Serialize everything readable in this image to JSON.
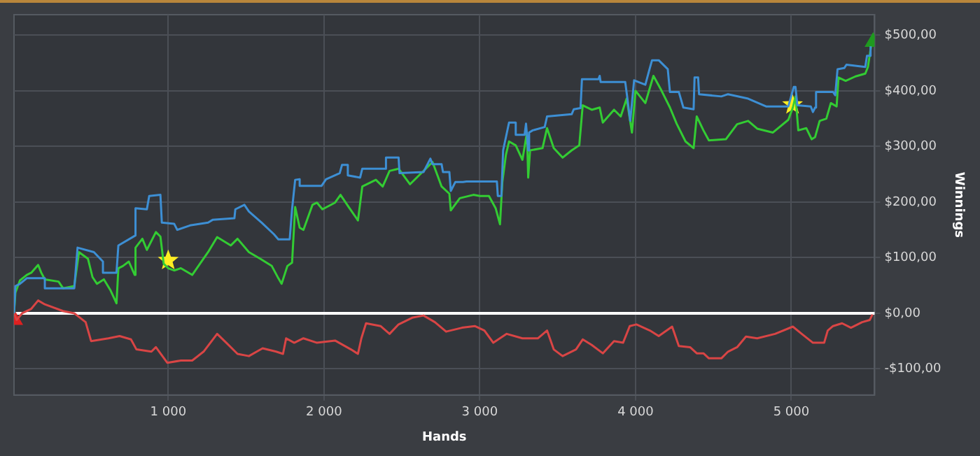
{
  "chart_data": {
    "type": "line",
    "xlabel": "Hands",
    "ylabel": "Winnings",
    "xlim": [
      10,
      5535
    ],
    "ylim": [
      -147,
      537
    ],
    "xticks": [
      {
        "value": 1000,
        "label": "1 000"
      },
      {
        "value": 2000,
        "label": "2 000"
      },
      {
        "value": 3000,
        "label": "3 000"
      },
      {
        "value": 4000,
        "label": "4 000"
      },
      {
        "value": 5000,
        "label": "5 000"
      }
    ],
    "yticks": [
      {
        "value": -100,
        "label": "-$100,00"
      },
      {
        "value": 0,
        "label": "$0,00"
      },
      {
        "value": 100,
        "label": "$100,00"
      },
      {
        "value": 200,
        "label": "$200,00"
      },
      {
        "value": 300,
        "label": "$300,00"
      },
      {
        "value": 400,
        "label": "$400,00"
      },
      {
        "value": 500,
        "label": "$500,00"
      }
    ],
    "grid": true,
    "legend": false,
    "marker": "none",
    "line_style": "solid",
    "ref_lines": [
      {
        "axis": "y",
        "value": 0,
        "color": "#ffffff"
      }
    ],
    "series": [
      {
        "color": "#3d8fd4",
        "x": [
          10,
          19,
          48,
          92,
          208,
          208,
          397,
          418,
          523,
          581,
          581,
          668,
          680,
          790,
          790,
          863,
          878,
          950,
          959,
          1038,
          1058,
          1140,
          1256,
          1285,
          1425,
          1431,
          1489,
          1518,
          1600,
          1679,
          1707,
          1780,
          1795,
          1815,
          1844,
          1844,
          1984,
          2013,
          2101,
          2116,
          2153,
          2153,
          2232,
          2246,
          2392,
          2398,
          2479,
          2485,
          2639,
          2683,
          2697,
          2755,
          2764,
          2805,
          2814,
          2843,
          2892,
          2915,
          3001,
          3110,
          3116,
          3139,
          3150,
          3188,
          3231,
          3231,
          3288,
          3297,
          3311,
          3317,
          3340,
          3417,
          3432,
          3590,
          3604,
          3647,
          3656,
          3762,
          3770,
          3776,
          3934,
          3948,
          3966,
          3991,
          4063,
          4086,
          4106,
          4149,
          4207,
          4221,
          4278,
          4307,
          4373,
          4379,
          4402,
          4408,
          4551,
          4594,
          4723,
          4838,
          4981,
          5016,
          5027,
          5039,
          5125,
          5139,
          5153,
          5159,
          5268,
          5282,
          5297,
          5340,
          5354,
          5475,
          5486,
          5503,
          5509
        ],
        "values": [
          0,
          49,
          53,
          63,
          63,
          45,
          45,
          118,
          110,
          93,
          73,
          73,
          122,
          140,
          189,
          187,
          211,
          213,
          163,
          161,
          150,
          158,
          163,
          168,
          171,
          187,
          195,
          183,
          163,
          142,
          133,
          133,
          187,
          240,
          241,
          229,
          229,
          241,
          252,
          267,
          267,
          248,
          244,
          260,
          260,
          280,
          280,
          252,
          254,
          278,
          268,
          268,
          254,
          254,
          220,
          236,
          236,
          237,
          237,
          237,
          211,
          211,
          293,
          343,
          343,
          321,
          321,
          341,
          293,
          325,
          329,
          335,
          354,
          358,
          367,
          369,
          421,
          421,
          427,
          416,
          416,
          386,
          346,
          419,
          411,
          435,
          455,
          455,
          439,
          398,
          398,
          370,
          367,
          424,
          424,
          394,
          390,
          394,
          386,
          372,
          372,
          407,
          407,
          374,
          372,
          362,
          370,
          398,
          398,
          392,
          439,
          441,
          447,
          443,
          463,
          463,
          480
        ]
      },
      {
        "color": "#33cc33",
        "x": [
          10,
          19,
          48,
          92,
          121,
          165,
          185,
          208,
          296,
          325,
          397,
          427,
          485,
          514,
          543,
          587,
          630,
          668,
          680,
          709,
          747,
          785,
          790,
          834,
          863,
          921,
          950,
          971,
          1000,
          1038,
          1081,
          1154,
          1256,
          1314,
          1402,
          1445,
          1518,
          1591,
          1665,
          1707,
          1728,
          1765,
          1795,
          1815,
          1844,
          1868,
          1926,
          1955,
          1990,
          2071,
          2106,
          2159,
          2218,
          2246,
          2333,
          2377,
          2421,
          2479,
          2552,
          2610,
          2697,
          2755,
          2805,
          2814,
          2872,
          2959,
          3001,
          3059,
          3102,
          3130,
          3145,
          3168,
          3188,
          3231,
          3274,
          3303,
          3311,
          3323,
          3403,
          3432,
          3475,
          3532,
          3590,
          3639,
          3661,
          3719,
          3770,
          3790,
          3862,
          3905,
          3943,
          3977,
          4000,
          4063,
          4115,
          4164,
          4221,
          4264,
          4321,
          4373,
          4393,
          4436,
          4471,
          4580,
          4652,
          4723,
          4781,
          4881,
          4981,
          5010,
          5027,
          5045,
          5096,
          5131,
          5153,
          5182,
          5225,
          5254,
          5291,
          5303,
          5349,
          5412,
          5475,
          5492,
          5512
        ],
        "values": [
          0,
          37,
          59,
          69,
          73,
          87,
          73,
          61,
          57,
          45,
          49,
          110,
          98,
          65,
          53,
          61,
          41,
          18,
          81,
          85,
          93,
          69,
          118,
          134,
          114,
          146,
          138,
          89,
          81,
          77,
          81,
          69,
          110,
          137,
          122,
          134,
          110,
          98,
          85,
          63,
          53,
          85,
          91,
          191,
          154,
          150,
          195,
          199,
          187,
          199,
          213,
          191,
          167,
          228,
          240,
          228,
          256,
          260,
          232,
          248,
          272,
          228,
          215,
          185,
          207,
          213,
          211,
          211,
          189,
          160,
          236,
          285,
          309,
          302,
          276,
          325,
          244,
          293,
          297,
          333,
          297,
          280,
          293,
          302,
          374,
          366,
          370,
          343,
          366,
          354,
          386,
          325,
          400,
          378,
          427,
          402,
          370,
          341,
          309,
          297,
          354,
          329,
          311,
          313,
          340,
          346,
          332,
          325,
          348,
          370,
          390,
          329,
          333,
          313,
          317,
          346,
          350,
          378,
          372,
          424,
          418,
          426,
          431,
          443,
          480
        ]
      },
      {
        "color": "#d94545",
        "x": [
          10,
          27,
          62,
          121,
          165,
          208,
          325,
          397,
          470,
          505,
          616,
          688,
          761,
          796,
          892,
          921,
          994,
          1081,
          1154,
          1227,
          1314,
          1373,
          1445,
          1518,
          1606,
          1693,
          1737,
          1757,
          1809,
          1868,
          1955,
          2071,
          2173,
          2218,
          2240,
          2270,
          2363,
          2421,
          2479,
          2566,
          2639,
          2712,
          2784,
          2886,
          2968,
          3030,
          3087,
          3173,
          3274,
          3374,
          3432,
          3475,
          3532,
          3618,
          3661,
          3719,
          3790,
          3862,
          3920,
          3963,
          4006,
          4092,
          4149,
          4235,
          4278,
          4350,
          4393,
          4436,
          4471,
          4551,
          4594,
          4652,
          4709,
          4781,
          4896,
          5010,
          5067,
          5139,
          5211,
          5234,
          5268,
          5326,
          5383,
          5455,
          5504,
          5521
        ],
        "values": [
          0,
          -12,
          0,
          8,
          23,
          16,
          4,
          0,
          -16,
          -50,
          -45,
          -41,
          -47,
          -65,
          -69,
          -61,
          -89,
          -85,
          -85,
          -69,
          -37,
          -53,
          -73,
          -77,
          -63,
          -69,
          -73,
          -45,
          -53,
          -45,
          -53,
          -49,
          -65,
          -73,
          -45,
          -18,
          -23,
          -37,
          -20,
          -8,
          -4,
          -16,
          -33,
          -26,
          -23,
          -31,
          -53,
          -37,
          -45,
          -45,
          -31,
          -65,
          -77,
          -65,
          -47,
          -57,
          -72,
          -50,
          -53,
          -23,
          -20,
          -31,
          -41,
          -24,
          -59,
          -61,
          -72,
          -72,
          -81,
          -81,
          -69,
          -61,
          -42,
          -45,
          -37,
          -24,
          -37,
          -53,
          -53,
          -31,
          -23,
          -18,
          -26,
          -16,
          -12,
          -2
        ]
      },
      {
        "type": "scatter",
        "marker": "star",
        "color": "#ffee22",
        "x": [
          1000,
          5008
        ],
        "values": [
          95,
          375
        ]
      },
      {
        "type": "scatter",
        "marker": "triangle",
        "color": "#e02020",
        "x": [
          14
        ],
        "values": [
          -12
        ]
      },
      {
        "type": "scatter",
        "marker": "triangle",
        "color": "#1f9a1f",
        "x": [
          5525
        ],
        "values": [
          488
        ]
      }
    ]
  }
}
